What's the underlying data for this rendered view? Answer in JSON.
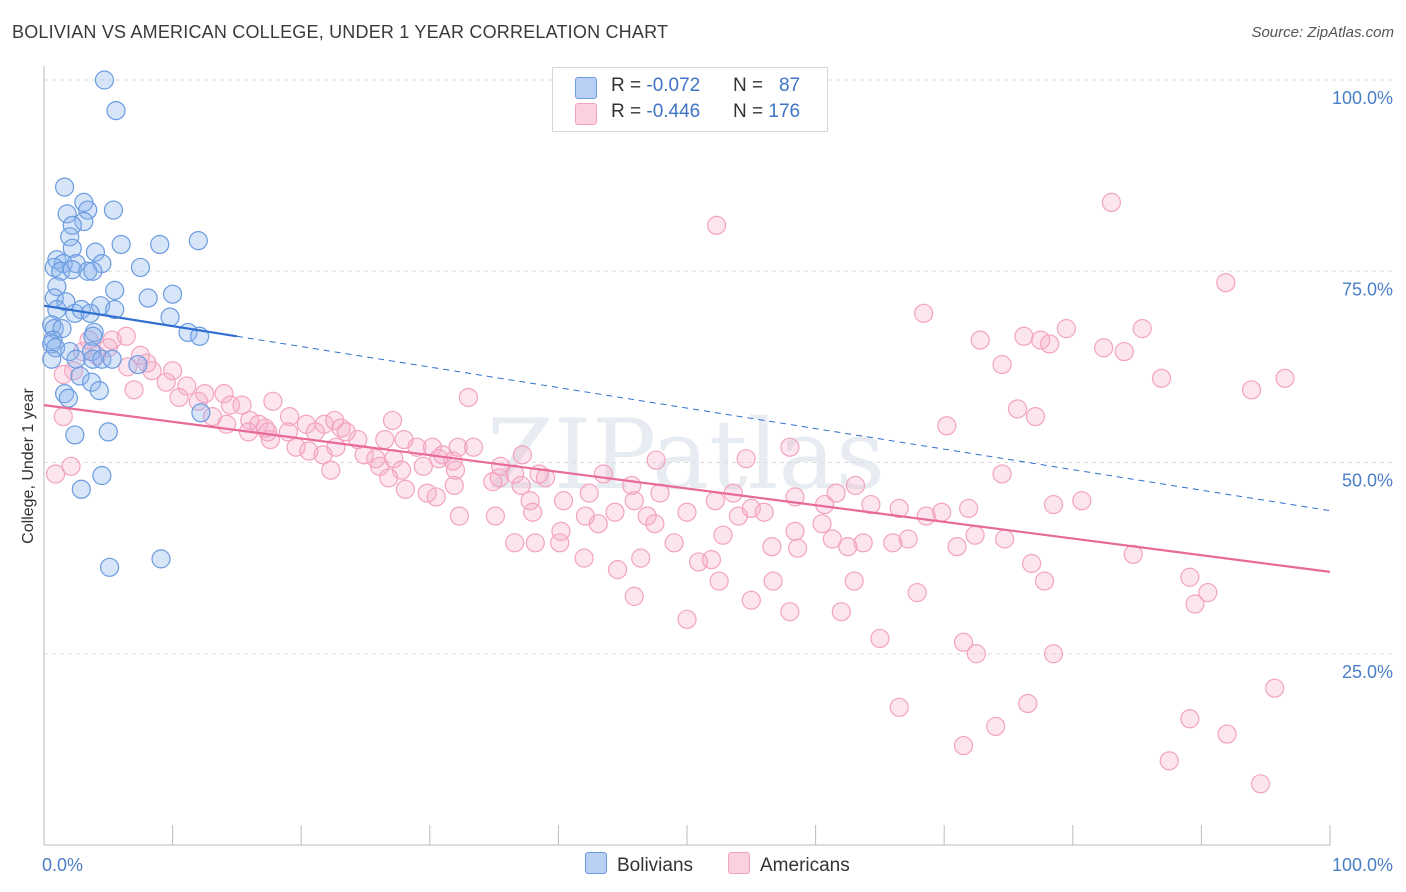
{
  "title": "BOLIVIAN VS AMERICAN COLLEGE, UNDER 1 YEAR CORRELATION CHART",
  "source": "Source: ZipAtlas.com",
  "watermark": "ZIPatlas",
  "legend": {
    "rows": [
      {
        "r_label": "R = ",
        "r_value": "-0.072",
        "n_label": "N = ",
        "n_value": "87",
        "color": "#6b9be0"
      },
      {
        "r_label": "R = ",
        "r_value": "-0.446",
        "n_label": "N = ",
        "n_value": "176",
        "color": "#f3a3bf"
      }
    ]
  },
  "bottom_legend": {
    "bolivians": "Bolivians",
    "americans": "Americans"
  },
  "chart_data": {
    "type": "scatter",
    "title": "BOLIVIAN VS AMERICAN COLLEGE, UNDER 1 YEAR CORRELATION CHART",
    "xlabel": "",
    "ylabel": "College, Under 1 year",
    "xlim": [
      0,
      100
    ],
    "ylim": [
      0,
      100
    ],
    "x_tick_labels": {
      "left": "0.0%",
      "right": "100.0%"
    },
    "y_ticks": [
      {
        "value": 100,
        "label": "100.0%"
      },
      {
        "value": 75,
        "label": "75.0%"
      },
      {
        "value": 50,
        "label": "50.0%"
      },
      {
        "value": 25,
        "label": "25.0%"
      }
    ],
    "series": [
      {
        "name": "Bolivians",
        "color": "#6b9be0",
        "line_color": "#2f6fd0",
        "trend": {
          "x0": 0,
          "y0": 70.5,
          "x1": 15,
          "y1": 66.5,
          "dashed_to_x": 100,
          "dashed_to_y": 43.7
        },
        "points": [
          [
            4.7,
            100
          ],
          [
            5.6,
            96
          ],
          [
            1.6,
            86
          ],
          [
            3.1,
            84
          ],
          [
            1.8,
            82.5
          ],
          [
            3.4,
            83
          ],
          [
            5.4,
            83
          ],
          [
            3.1,
            81.5
          ],
          [
            2.2,
            81
          ],
          [
            2.0,
            79.5
          ],
          [
            6.0,
            78.5
          ],
          [
            9.0,
            78.5
          ],
          [
            12.0,
            79
          ],
          [
            2.2,
            78
          ],
          [
            4.0,
            77.5
          ],
          [
            1.0,
            76.5
          ],
          [
            1.5,
            76
          ],
          [
            2.5,
            76
          ],
          [
            0.8,
            75.5
          ],
          [
            4.5,
            76
          ],
          [
            7.5,
            75.5
          ],
          [
            1.3,
            75
          ],
          [
            2.2,
            75.2
          ],
          [
            3.4,
            75
          ],
          [
            3.8,
            75
          ],
          [
            1.0,
            73
          ],
          [
            5.5,
            72.5
          ],
          [
            8.1,
            71.5
          ],
          [
            10.0,
            72
          ],
          [
            0.8,
            71.5
          ],
          [
            1.7,
            71
          ],
          [
            4.4,
            70.5
          ],
          [
            1.0,
            70
          ],
          [
            2.4,
            69.5
          ],
          [
            2.9,
            70
          ],
          [
            3.6,
            69.5
          ],
          [
            5.5,
            70
          ],
          [
            9.8,
            69
          ],
          [
            0.6,
            68
          ],
          [
            0.8,
            67.5
          ],
          [
            1.4,
            67.5
          ],
          [
            3.9,
            67
          ],
          [
            11.2,
            67
          ],
          [
            12.1,
            66.5
          ],
          [
            0.7,
            66
          ],
          [
            3.8,
            66.5
          ],
          [
            0.6,
            65.5
          ],
          [
            0.9,
            65
          ],
          [
            2.0,
            64.5
          ],
          [
            3.7,
            64.5
          ],
          [
            0.6,
            63.5
          ],
          [
            2.5,
            63.5
          ],
          [
            3.8,
            63.5
          ],
          [
            4.5,
            63.5
          ],
          [
            5.3,
            63.5
          ],
          [
            7.3,
            62.8
          ],
          [
            2.8,
            61.3
          ],
          [
            3.7,
            60.5
          ],
          [
            1.6,
            59
          ],
          [
            4.3,
            59.4
          ],
          [
            1.9,
            58.4
          ],
          [
            12.2,
            56.5
          ],
          [
            2.4,
            53.6
          ],
          [
            5.0,
            54
          ],
          [
            4.5,
            48.3
          ],
          [
            2.9,
            46.5
          ],
          [
            5.1,
            36.3
          ],
          [
            9.1,
            37.4
          ]
        ]
      },
      {
        "name": "Americans",
        "color": "#f3a3bf",
        "line_color": "#e76a98",
        "trend": {
          "x0": 0,
          "y0": 57.5,
          "x1": 100,
          "y1": 35.7
        },
        "points": [
          [
            3.5,
            66
          ],
          [
            5.3,
            66
          ],
          [
            6.4,
            66.5
          ],
          [
            5.0,
            65
          ],
          [
            3.0,
            64.5
          ],
          [
            7.5,
            64
          ],
          [
            4.1,
            64
          ],
          [
            8.0,
            63
          ],
          [
            6.5,
            62.5
          ],
          [
            2.3,
            62
          ],
          [
            8.4,
            62
          ],
          [
            10.0,
            62
          ],
          [
            1.5,
            61.5
          ],
          [
            9.5,
            60.5
          ],
          [
            11.1,
            60
          ],
          [
            7.0,
            59.5
          ],
          [
            12.5,
            59
          ],
          [
            14.0,
            59
          ],
          [
            10.5,
            58.5
          ],
          [
            12.0,
            58
          ],
          [
            17.8,
            58
          ],
          [
            14.5,
            57.5
          ],
          [
            15.4,
            57.5
          ],
          [
            1.5,
            56
          ],
          [
            19.1,
            56
          ],
          [
            13.1,
            56
          ],
          [
            16.0,
            55.5
          ],
          [
            14.2,
            55
          ],
          [
            16.7,
            55
          ],
          [
            17.2,
            54.5
          ],
          [
            20.4,
            55
          ],
          [
            21.8,
            55
          ],
          [
            22.6,
            55.5
          ],
          [
            27.1,
            55.5
          ],
          [
            23.1,
            54.5
          ],
          [
            15.9,
            54
          ],
          [
            17.4,
            54
          ],
          [
            19.0,
            54
          ],
          [
            21.1,
            54
          ],
          [
            23.5,
            54
          ],
          [
            24.4,
            53
          ],
          [
            26.5,
            53
          ],
          [
            28.0,
            53
          ],
          [
            17.6,
            53
          ],
          [
            19.6,
            52
          ],
          [
            20.6,
            51.5
          ],
          [
            22.7,
            52
          ],
          [
            29.0,
            52
          ],
          [
            30.2,
            52
          ],
          [
            32.2,
            52
          ],
          [
            33.4,
            52
          ],
          [
            31.0,
            51
          ],
          [
            24.9,
            51
          ],
          [
            25.8,
            50.5
          ],
          [
            27.2,
            50.5
          ],
          [
            30.7,
            50.5
          ],
          [
            37.2,
            51
          ],
          [
            21.7,
            51
          ],
          [
            31.8,
            50.2
          ],
          [
            26.1,
            49.5
          ],
          [
            29.5,
            49.5
          ],
          [
            35.5,
            49.5
          ],
          [
            47.6,
            50.3
          ],
          [
            54.6,
            50.5
          ],
          [
            58.0,
            52
          ],
          [
            27.8,
            49
          ],
          [
            22.3,
            49
          ],
          [
            32.0,
            49
          ],
          [
            36.6,
            48.5
          ],
          [
            38.5,
            48.5
          ],
          [
            43.5,
            48.5
          ],
          [
            26.8,
            48
          ],
          [
            35.4,
            48
          ],
          [
            39.0,
            48
          ],
          [
            34.9,
            47.5
          ],
          [
            0.9,
            48.5
          ],
          [
            2.1,
            49.5
          ],
          [
            33.0,
            58.5
          ],
          [
            31.9,
            47
          ],
          [
            37.1,
            47
          ],
          [
            45.7,
            47
          ],
          [
            63.1,
            47
          ],
          [
            28.1,
            46.5
          ],
          [
            42.4,
            46
          ],
          [
            47.9,
            46
          ],
          [
            53.6,
            46
          ],
          [
            58.4,
            45.5
          ],
          [
            61.6,
            46
          ],
          [
            64.3,
            44.5
          ],
          [
            29.8,
            46
          ],
          [
            30.5,
            45.5
          ],
          [
            37.8,
            45
          ],
          [
            40.4,
            45
          ],
          [
            45.9,
            45
          ],
          [
            52.2,
            45
          ],
          [
            60.7,
            44.5
          ],
          [
            55.0,
            44
          ],
          [
            44.4,
            43.5
          ],
          [
            50.0,
            43.5
          ],
          [
            56.0,
            43.5
          ],
          [
            66.5,
            44
          ],
          [
            71.9,
            44
          ],
          [
            80.7,
            45
          ],
          [
            78.5,
            44.5
          ],
          [
            42.1,
            43
          ],
          [
            32.3,
            43
          ],
          [
            35.1,
            43
          ],
          [
            38.0,
            43.5
          ],
          [
            46.9,
            43
          ],
          [
            54.0,
            43
          ],
          [
            68.6,
            43
          ],
          [
            69.8,
            43.5
          ],
          [
            60.5,
            42
          ],
          [
            43.1,
            42
          ],
          [
            47.5,
            42
          ],
          [
            40.2,
            41
          ],
          [
            58.4,
            41
          ],
          [
            52.8,
            40.5
          ],
          [
            61.3,
            40
          ],
          [
            63.7,
            39.5
          ],
          [
            67.2,
            40
          ],
          [
            72.4,
            40.5
          ],
          [
            36.6,
            39.5
          ],
          [
            40.1,
            39.5
          ],
          [
            49.0,
            39.5
          ],
          [
            56.6,
            39
          ],
          [
            62.5,
            39
          ],
          [
            74.7,
            40
          ],
          [
            66.0,
            39.5
          ],
          [
            71.0,
            39
          ],
          [
            42.0,
            37.5
          ],
          [
            46.4,
            37.5
          ],
          [
            50.9,
            37
          ],
          [
            51.9,
            37.3
          ],
          [
            58.6,
            38.8
          ],
          [
            76.8,
            36.8
          ],
          [
            84.7,
            38
          ],
          [
            77.8,
            34.5
          ],
          [
            89.1,
            35
          ],
          [
            44.6,
            36
          ],
          [
            56.7,
            34.5
          ],
          [
            63.0,
            34.5
          ],
          [
            90.5,
            33
          ],
          [
            67.9,
            33
          ],
          [
            38.2,
            39.5
          ],
          [
            52.5,
            34.5
          ],
          [
            45.9,
            32.5
          ],
          [
            55.0,
            32
          ],
          [
            58.0,
            30.5
          ],
          [
            62.0,
            30.5
          ],
          [
            50.0,
            29.5
          ],
          [
            65.0,
            27
          ],
          [
            71.5,
            26.5
          ],
          [
            72.5,
            25
          ],
          [
            78.5,
            25
          ],
          [
            89.5,
            31.5
          ],
          [
            95.7,
            20.5
          ],
          [
            66.5,
            18
          ],
          [
            76.5,
            18.5
          ],
          [
            89.1,
            16.5
          ],
          [
            92.0,
            14.5
          ],
          [
            74.0,
            15.5
          ],
          [
            71.5,
            13
          ],
          [
            87.5,
            11
          ],
          [
            94.6,
            8
          ],
          [
            52.3,
            81
          ],
          [
            83.0,
            84
          ],
          [
            91.9,
            73.5
          ],
          [
            68.4,
            69.5
          ],
          [
            85.4,
            67.5
          ],
          [
            76.2,
            66.5
          ],
          [
            77.5,
            66
          ],
          [
            78.2,
            65.5
          ],
          [
            72.8,
            66
          ],
          [
            79.5,
            67.5
          ],
          [
            82.4,
            65
          ],
          [
            84.0,
            64.5
          ],
          [
            74.5,
            62.8
          ],
          [
            93.9,
            59.5
          ],
          [
            96.5,
            61
          ],
          [
            86.9,
            61
          ],
          [
            75.7,
            57
          ],
          [
            77.1,
            56
          ],
          [
            70.2,
            54.8
          ],
          [
            74.5,
            48.5
          ]
        ]
      }
    ]
  }
}
